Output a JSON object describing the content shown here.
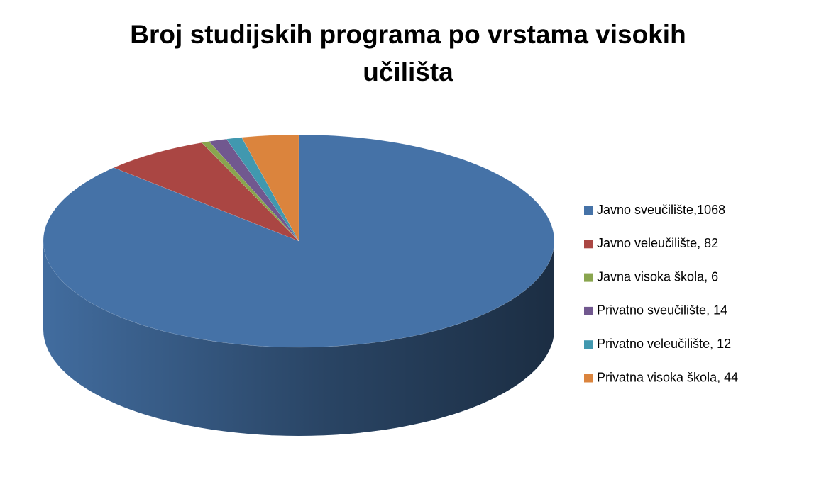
{
  "chart_data": {
    "type": "pie3d",
    "title": "Broj studijskih programa po vrstama visokih učilišta",
    "categories": [
      "Javno sveučilište,1068",
      "Javno veleučilište, 82",
      "Javna visoka škola, 6",
      "Privatno sveučilište, 14",
      "Privatno veleučilište, 12",
      "Privatna visoka škola, 44"
    ],
    "values": [
      1068,
      82,
      6,
      14,
      12,
      44
    ],
    "colors": [
      "#4572a7",
      "#aa4643",
      "#89a54e",
      "#71588f",
      "#4198af",
      "#db843d"
    ],
    "legend": "right"
  }
}
